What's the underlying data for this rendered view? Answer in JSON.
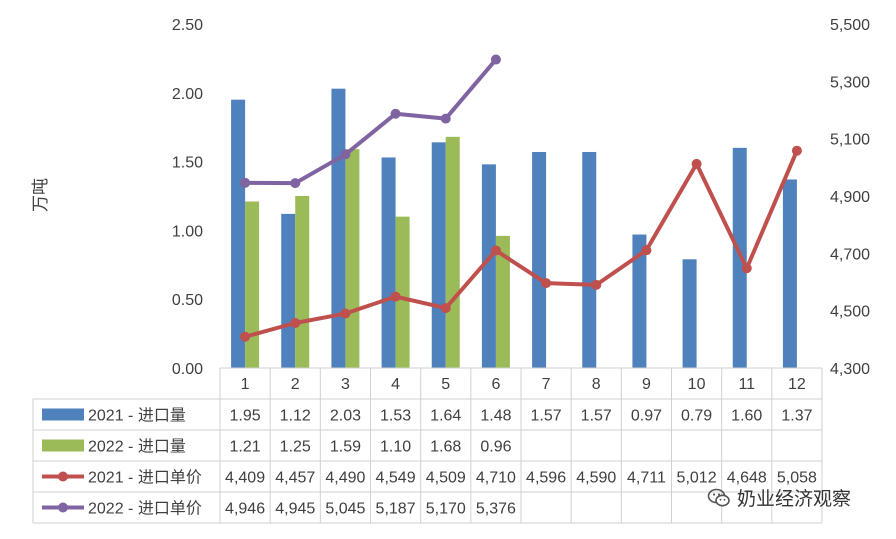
{
  "chart_data": {
    "type": "bar",
    "categories": [
      "1",
      "2",
      "3",
      "4",
      "5",
      "6",
      "7",
      "8",
      "9",
      "10",
      "11",
      "12"
    ],
    "ylabel": "万吨",
    "ylim": [
      0,
      2.5
    ],
    "yticks": [
      "0.00",
      "0.50",
      "1.00",
      "1.50",
      "2.00",
      "2.50"
    ],
    "y2lim": [
      4300,
      5500
    ],
    "y2ticks": [
      "4,300",
      "4,500",
      "4,700",
      "4,900",
      "5,100",
      "5,300",
      "5,500"
    ],
    "grid": false,
    "legend": "data-table",
    "series": [
      {
        "name": "2021 - 进口量",
        "type": "bar",
        "axis": "left",
        "color": "#4f81bd",
        "values": [
          1.95,
          1.12,
          2.03,
          1.53,
          1.64,
          1.48,
          1.57,
          1.57,
          0.97,
          0.79,
          1.6,
          1.37
        ],
        "labels": [
          "1.95",
          "1.12",
          "2.03",
          "1.53",
          "1.64",
          "1.48",
          "1.57",
          "1.57",
          "0.97",
          "0.79",
          "1.60",
          "1.37"
        ]
      },
      {
        "name": "2022 - 进口量",
        "type": "bar",
        "axis": "left",
        "color": "#9bbb59",
        "values": [
          1.21,
          1.25,
          1.59,
          1.1,
          1.68,
          0.96,
          null,
          null,
          null,
          null,
          null,
          null
        ],
        "labels": [
          "1.21",
          "1.25",
          "1.59",
          "1.10",
          "1.68",
          "0.96",
          "",
          "",
          "",
          "",
          "",
          ""
        ]
      },
      {
        "name": "2021 - 进口单价",
        "type": "line",
        "axis": "right",
        "color": "#c0504d",
        "values": [
          4409,
          4457,
          4490,
          4549,
          4509,
          4710,
          4596,
          4590,
          4711,
          5012,
          4648,
          5058
        ],
        "labels": [
          "4,409",
          "4,457",
          "4,490",
          "4,549",
          "4,509",
          "4,710",
          "4,596",
          "4,590",
          "4,711",
          "5,012",
          "4,648",
          "5,058"
        ]
      },
      {
        "name": "2022 - 进口单价",
        "type": "line",
        "axis": "right",
        "color": "#8064a2",
        "values": [
          4946,
          4945,
          5045,
          5187,
          5170,
          5376,
          null,
          null,
          null,
          null,
          null,
          null
        ],
        "labels": [
          "4,946",
          "4,945",
          "5,045",
          "5,187",
          "5,170",
          "5,376",
          "",
          "",
          "",
          "",
          "",
          ""
        ]
      }
    ]
  },
  "watermark": {
    "text": "奶业经济观察",
    "icon": "wechat-icon"
  }
}
